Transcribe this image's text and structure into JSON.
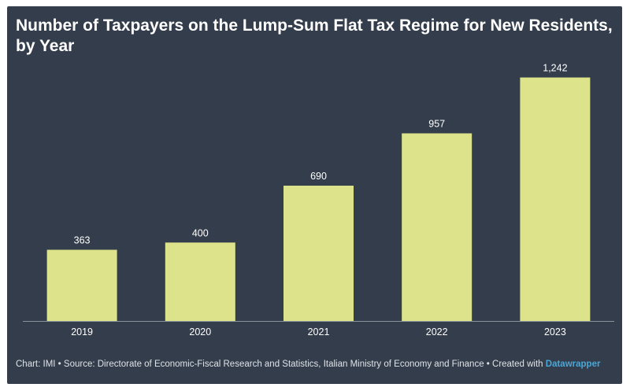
{
  "chart_data": {
    "type": "bar",
    "title": "Number of Taxpayers on the Lump-Sum Flat Tax Regime for New Residents, by Year",
    "categories": [
      "2019",
      "2020",
      "2021",
      "2022",
      "2023"
    ],
    "values": [
      363,
      400,
      690,
      957,
      1242
    ],
    "value_labels": [
      "363",
      "400",
      "690",
      "957",
      "1,242"
    ],
    "xlabel": "",
    "ylabel": "",
    "ylim": [
      0,
      1280
    ],
    "grid": false,
    "legend": "none"
  },
  "footer": {
    "prefix": "Chart: IMI • Source: Directorate of Economic-Fiscal Research and Statistics, Italian Ministry of Economy and Finance • Created with",
    "brand": "Datawrapper"
  },
  "colors": {
    "background": "#343d4b",
    "bar": "#dce38b",
    "text": "#ffffff",
    "brand": "#4aa7d6"
  }
}
